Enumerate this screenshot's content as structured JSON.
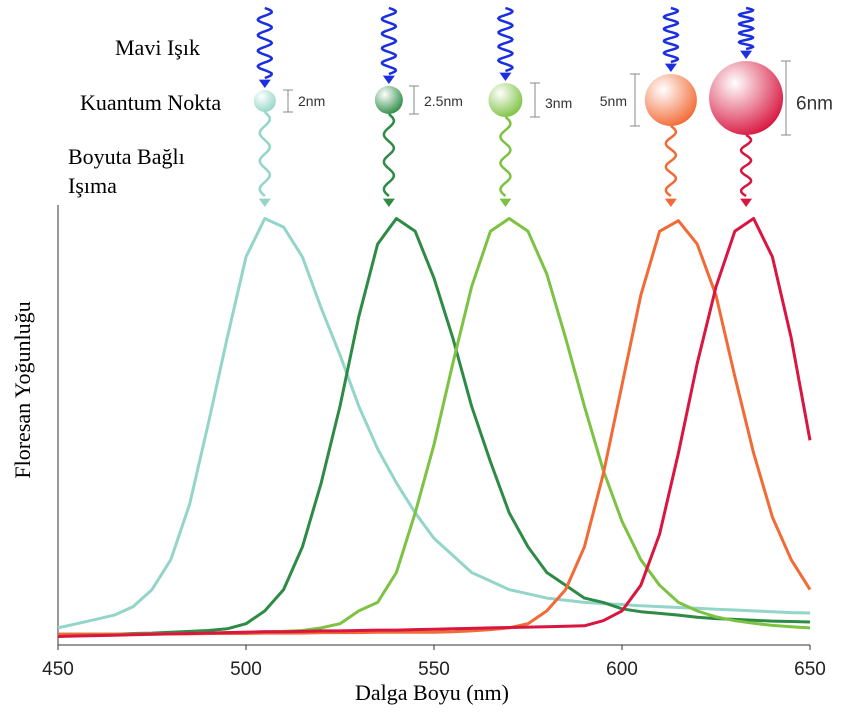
{
  "chart_data": {
    "type": "line",
    "xlabel": "Dalga Boyu (nm)",
    "ylabel": "Floresan Yoğunluğu",
    "annotations": [
      "Mavi Işık",
      "Kuantum Nokta",
      "Boyuta Bağlı",
      "Işıma"
    ],
    "dot_sizes": [
      "2nm",
      "2.5nm",
      "3nm",
      "5nm",
      "6nm"
    ],
    "xlim": [
      450,
      650
    ],
    "xticks": [
      450,
      500,
      550,
      600,
      650
    ],
    "ylim": [
      0,
      1.02
    ],
    "x": [
      450,
      455,
      460,
      465,
      470,
      475,
      480,
      485,
      490,
      495,
      500,
      505,
      510,
      515,
      520,
      525,
      530,
      535,
      540,
      545,
      550,
      555,
      560,
      565,
      570,
      575,
      580,
      585,
      590,
      595,
      600,
      605,
      610,
      615,
      620,
      625,
      630,
      635,
      640,
      645,
      650
    ],
    "series": [
      {
        "color": "#93d5c8",
        "values": [
          0.04,
          0.05,
          0.06,
          0.07,
          0.09,
          0.13,
          0.2,
          0.33,
          0.52,
          0.72,
          0.91,
          1.0,
          0.98,
          0.91,
          0.79,
          0.68,
          0.56,
          0.46,
          0.38,
          0.31,
          0.25,
          0.21,
          0.17,
          0.15,
          0.13,
          0.12,
          0.11,
          0.105,
          0.1,
          0.097,
          0.095,
          0.092,
          0.09,
          0.088,
          0.086,
          0.084,
          0.082,
          0.08,
          0.078,
          0.076,
          0.075
        ]
      },
      {
        "color": "#2e8b45",
        "values": [
          0.025,
          0.025,
          0.025,
          0.025,
          0.027,
          0.028,
          0.03,
          0.032,
          0.034,
          0.038,
          0.05,
          0.08,
          0.13,
          0.23,
          0.38,
          0.56,
          0.77,
          0.94,
          1.0,
          0.97,
          0.86,
          0.72,
          0.56,
          0.43,
          0.31,
          0.23,
          0.17,
          0.14,
          0.11,
          0.1,
          0.085,
          0.078,
          0.074,
          0.07,
          0.065,
          0.062,
          0.06,
          0.058,
          0.056,
          0.055,
          0.054
        ]
      },
      {
        "color": "#7dc242",
        "values": [
          0.025,
          0.025,
          0.025,
          0.025,
          0.025,
          0.025,
          0.026,
          0.027,
          0.028,
          0.029,
          0.03,
          0.031,
          0.032,
          0.034,
          0.04,
          0.05,
          0.08,
          0.1,
          0.17,
          0.31,
          0.47,
          0.66,
          0.84,
          0.97,
          1.0,
          0.97,
          0.87,
          0.72,
          0.56,
          0.41,
          0.29,
          0.2,
          0.14,
          0.1,
          0.08,
          0.066,
          0.057,
          0.051,
          0.046,
          0.043,
          0.04
        ]
      },
      {
        "color": "#f26a35",
        "values": [
          0.025,
          0.025,
          0.025,
          0.025,
          0.025,
          0.026,
          0.026,
          0.026,
          0.027,
          0.027,
          0.027,
          0.028,
          0.028,
          0.028,
          0.029,
          0.029,
          0.029,
          0.03,
          0.03,
          0.03,
          0.03,
          0.031,
          0.033,
          0.036,
          0.04,
          0.05,
          0.08,
          0.13,
          0.23,
          0.4,
          0.61,
          0.82,
          0.97,
          0.995,
          0.94,
          0.82,
          0.63,
          0.45,
          0.3,
          0.2,
          0.13
        ]
      },
      {
        "color": "#d8163f",
        "values": [
          0.02,
          0.021,
          0.022,
          0.023,
          0.024,
          0.025,
          0.026,
          0.027,
          0.028,
          0.029,
          0.03,
          0.031,
          0.031,
          0.032,
          0.033,
          0.033,
          0.034,
          0.035,
          0.035,
          0.036,
          0.037,
          0.038,
          0.039,
          0.04,
          0.041,
          0.042,
          0.043,
          0.044,
          0.045,
          0.057,
          0.08,
          0.14,
          0.26,
          0.45,
          0.66,
          0.84,
          0.97,
          1.0,
          0.91,
          0.72,
          0.48
        ]
      }
    ]
  }
}
